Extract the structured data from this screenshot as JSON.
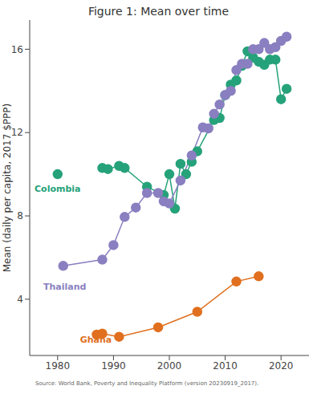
{
  "chart_data": {
    "type": "line",
    "title": "Figure 1: Mean over time",
    "y_label": "Mean (daily per capita, 2017 $PPP)",
    "source": "Source: World Bank, Poverty and Inequality Platform (version 20230919_2017).",
    "xlim": [
      1975,
      2025
    ],
    "xticks": [
      1980,
      1990,
      2000,
      2010,
      2020
    ],
    "ylim": [
      1.3,
      17.4
    ],
    "yticks": [
      4,
      8,
      12,
      16
    ],
    "grid": false,
    "marker": "circle",
    "series": [
      {
        "name": "Colombia",
        "color": "#26a27a",
        "x": [
          1980,
          1980,
          1988,
          1989,
          1991,
          1992,
          1996,
          1999,
          2000,
          2001,
          2002,
          2003,
          2004,
          2005,
          2008,
          2009,
          2010,
          2011,
          2012,
          2013,
          2014,
          2015,
          2016,
          2017,
          2018,
          2019,
          2020,
          2021
        ],
        "values": [
          10.0,
          null,
          10.3,
          10.25,
          10.4,
          10.3,
          9.4,
          9.0,
          10.0,
          8.35,
          10.5,
          10.0,
          10.6,
          11.1,
          12.6,
          12.7,
          13.8,
          14.3,
          14.5,
          15.2,
          15.9,
          15.6,
          15.4,
          15.25,
          15.5,
          15.5,
          13.6,
          14.1
        ]
      },
      {
        "name": "Thailand",
        "color": "#8a7fc0",
        "x": [
          1981,
          1988,
          1990,
          1992,
          1994,
          1996,
          1998,
          1999,
          2000,
          2002,
          2004,
          2006,
          2007,
          2008,
          2009,
          2010,
          2011,
          2012,
          2013,
          2014,
          2015,
          2016,
          2017,
          2018,
          2019,
          2020,
          2021
        ],
        "values": [
          5.6,
          5.9,
          6.6,
          7.95,
          8.4,
          9.1,
          9.1,
          8.7,
          8.6,
          9.7,
          10.9,
          12.25,
          12.2,
          12.9,
          13.35,
          13.8,
          14.0,
          15.0,
          15.3,
          15.3,
          16.0,
          16.0,
          16.3,
          16.0,
          16.1,
          16.4,
          16.6
        ]
      },
      {
        "name": "Ghana",
        "color": "#e0701f",
        "x": [
          1987,
          1988,
          1991,
          1998,
          2005,
          2012,
          2016
        ],
        "values": [
          2.3,
          2.35,
          2.2,
          2.65,
          3.4,
          4.85,
          5.1
        ]
      }
    ]
  }
}
